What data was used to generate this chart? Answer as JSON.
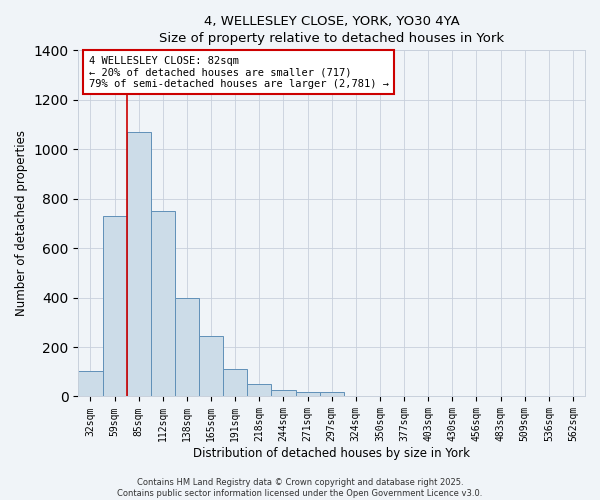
{
  "title": "4, WELLESLEY CLOSE, YORK, YO30 4YA",
  "subtitle": "Size of property relative to detached houses in York",
  "xlabel": "Distribution of detached houses by size in York",
  "ylabel": "Number of detached properties",
  "bar_color": "#ccdce8",
  "bar_edge_color": "#6090b8",
  "background_color": "#f0f4f8",
  "categories": [
    "32sqm",
    "59sqm",
    "85sqm",
    "112sqm",
    "138sqm",
    "165sqm",
    "191sqm",
    "218sqm",
    "244sqm",
    "271sqm",
    "297sqm",
    "324sqm",
    "350sqm",
    "377sqm",
    "403sqm",
    "430sqm",
    "456sqm",
    "483sqm",
    "509sqm",
    "536sqm",
    "562sqm"
  ],
  "values": [
    105,
    730,
    1070,
    750,
    400,
    245,
    110,
    50,
    27,
    20,
    20,
    0,
    0,
    0,
    0,
    0,
    0,
    0,
    0,
    0,
    0
  ],
  "ylim": [
    0,
    1400
  ],
  "yticks": [
    0,
    200,
    400,
    600,
    800,
    1000,
    1200,
    1400
  ],
  "vline_index": 2,
  "vline_color": "#cc0000",
  "annotation_title": "4 WELLESLEY CLOSE: 82sqm",
  "annotation_line1": "← 20% of detached houses are smaller (717)",
  "annotation_line2": "79% of semi-detached houses are larger (2,781) →",
  "annotation_box_color": "#ffffff",
  "annotation_border_color": "#cc0000",
  "footer_line1": "Contains HM Land Registry data © Crown copyright and database right 2025.",
  "footer_line2": "Contains public sector information licensed under the Open Government Licence v3.0."
}
